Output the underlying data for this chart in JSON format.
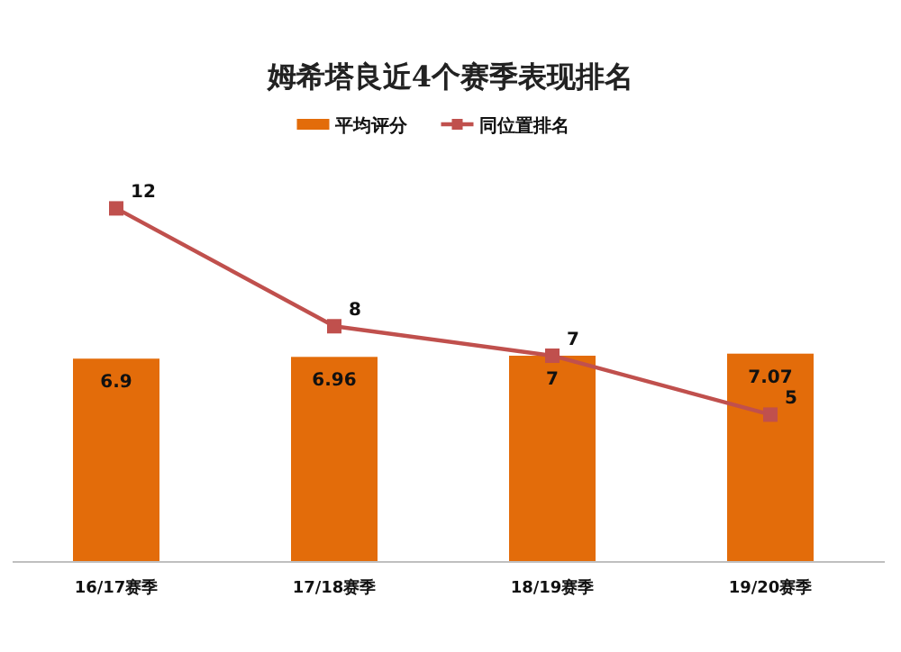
{
  "chart_data": {
    "type": "bar",
    "title": "姆希塔良近4个赛季表现排名",
    "categories": [
      "16/17赛季",
      "17/18赛季",
      "18/19赛季",
      "19/20赛季"
    ],
    "series": [
      {
        "name": "平均评分",
        "color": "#e36c0a",
        "values": [
          6.9,
          6.96,
          7,
          7.07
        ]
      },
      {
        "name": "同位置排名",
        "type": "line",
        "color": "#c0504d",
        "values": [
          12,
          8,
          7,
          5
        ]
      }
    ],
    "data_labels": true,
    "legend": "top",
    "marker": "square"
  }
}
